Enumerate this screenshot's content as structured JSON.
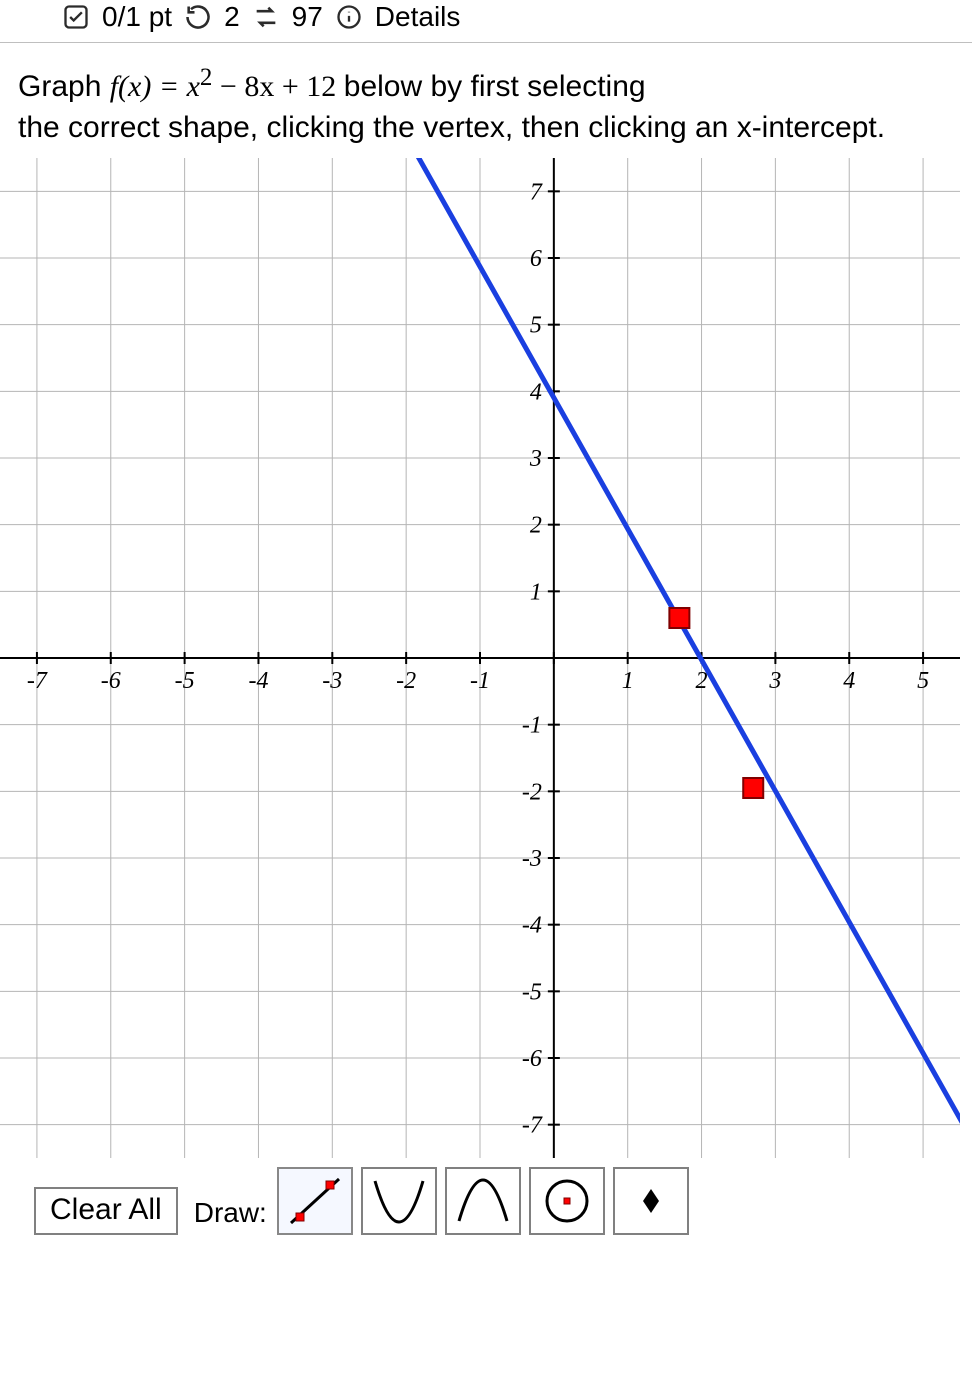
{
  "header": {
    "points": "0/1 pt",
    "attempts_used": "2",
    "attempts_left": "97",
    "details": "Details"
  },
  "question": {
    "pre": "Graph ",
    "func_left": "f(x) = x",
    "exp": "2",
    "func_right": " − 8x + 12",
    "post1": " below by first selecting",
    "post2": "the correct shape, clicking the vertex, then clicking an x-intercept."
  },
  "graph": {
    "type": "coordinate-grid",
    "xmin": -7.5,
    "xmax": 5.5,
    "ymin": -7.5,
    "ymax": 7.5,
    "xtick_step": 1,
    "ytick_step": 1,
    "x_labels": [
      -7,
      -6,
      -5,
      -4,
      -3,
      -2,
      -1,
      1,
      2,
      3,
      4,
      5
    ],
    "y_labels": [
      7,
      6,
      5,
      4,
      3,
      2,
      1,
      -1,
      -2,
      -3,
      -4,
      -5,
      -6,
      -7
    ],
    "grid_color": "#b5b5b5",
    "axis_color": "#000000",
    "background_color": "#ffffff",
    "label_fontsize": 24,
    "label_font": "Comic Sans MS, cursive",
    "line": {
      "color": "#1a3fe0",
      "width": 5,
      "p1": {
        "x": -3.1,
        "y": 10.0
      },
      "p2": {
        "x": 5.8,
        "y": -7.5
      }
    },
    "points": [
      {
        "x": 1.7,
        "y": 0.6,
        "fill": "#ff0000",
        "stroke": "#800000",
        "size": 10
      },
      {
        "x": 2.7,
        "y": -1.95,
        "fill": "#ff0000",
        "stroke": "#800000",
        "size": 10
      }
    ]
  },
  "toolbar": {
    "clear_all": "Clear All",
    "draw_label": "Draw:",
    "tools": [
      "line-with-points",
      "parabola-up",
      "parabola-down",
      "circle-point",
      "dot"
    ],
    "selected": 0
  },
  "colors": {
    "icon_stroke": "#2b2b2b",
    "button_border": "#808080"
  }
}
